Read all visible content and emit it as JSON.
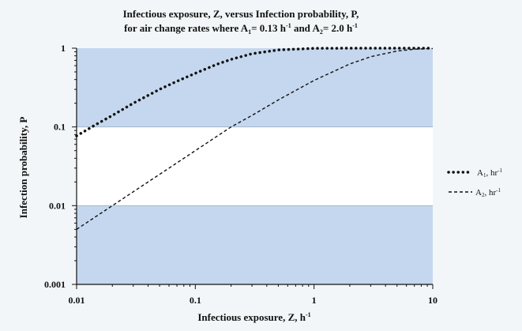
{
  "chart_data": {
    "type": "line",
    "title_line1": "Infectious exposure, Z, versus Infection probability,  P,",
    "title_line2_prefix": "for air change rates where A",
    "title_line2_mid": "= 0.13 h",
    "title_line2_mid2": " and A",
    "title_line2_end": "= 2.0 h",
    "sub1": "1",
    "sub2": "2",
    "sup": "-1",
    "xlabel_text": "Infectious exposure, Z, h",
    "xlabel_sup": "-1",
    "ylabel": "Infection probability, P",
    "x_scale": "log",
    "y_scale": "log",
    "xlim": [
      0.01,
      10
    ],
    "ylim": [
      0.001,
      1
    ],
    "x_ticks": [
      {
        "value": 0.01,
        "label": "0.01"
      },
      {
        "value": 0.1,
        "label": "0.1"
      },
      {
        "value": 1,
        "label": "1"
      },
      {
        "value": 10,
        "label": "10"
      }
    ],
    "y_ticks": [
      {
        "value": 0.001,
        "label": "0.001"
      },
      {
        "value": 0.01,
        "label": "0.01"
      },
      {
        "value": 0.1,
        "label": "0.1"
      },
      {
        "value": 1,
        "label": "1"
      }
    ],
    "bands": [
      {
        "from": 0.1,
        "to": 1,
        "color": "#c5d7ee"
      },
      {
        "from": 0.01,
        "to": 0.1,
        "color": "#ffffff"
      },
      {
        "from": 0.001,
        "to": 0.01,
        "color": "#c5d7ee"
      }
    ],
    "legend_position": "right",
    "series": [
      {
        "name_base": "A",
        "name_sub": "1",
        "name_unit": ", hr",
        "name_sup": "-1",
        "style": "dotted",
        "x": [
          0.01,
          0.015,
          0.02,
          0.03,
          0.05,
          0.07,
          0.1,
          0.15,
          0.2,
          0.3,
          0.5,
          1,
          2,
          5,
          10
        ],
        "y": [
          0.077,
          0.11,
          0.14,
          0.2,
          0.3,
          0.38,
          0.48,
          0.62,
          0.72,
          0.85,
          0.95,
          0.995,
          1,
          1,
          1
        ]
      },
      {
        "name_base": "A",
        "name_sub": "2",
        "name_unit": ", hr",
        "name_sup": "-1",
        "style": "dashed",
        "x": [
          0.01,
          0.02,
          0.05,
          0.1,
          0.2,
          0.3,
          0.5,
          1,
          2,
          3,
          5,
          7,
          10
        ],
        "y": [
          0.005,
          0.01,
          0.025,
          0.05,
          0.1,
          0.14,
          0.22,
          0.39,
          0.63,
          0.78,
          0.92,
          0.97,
          0.99
        ]
      }
    ]
  }
}
